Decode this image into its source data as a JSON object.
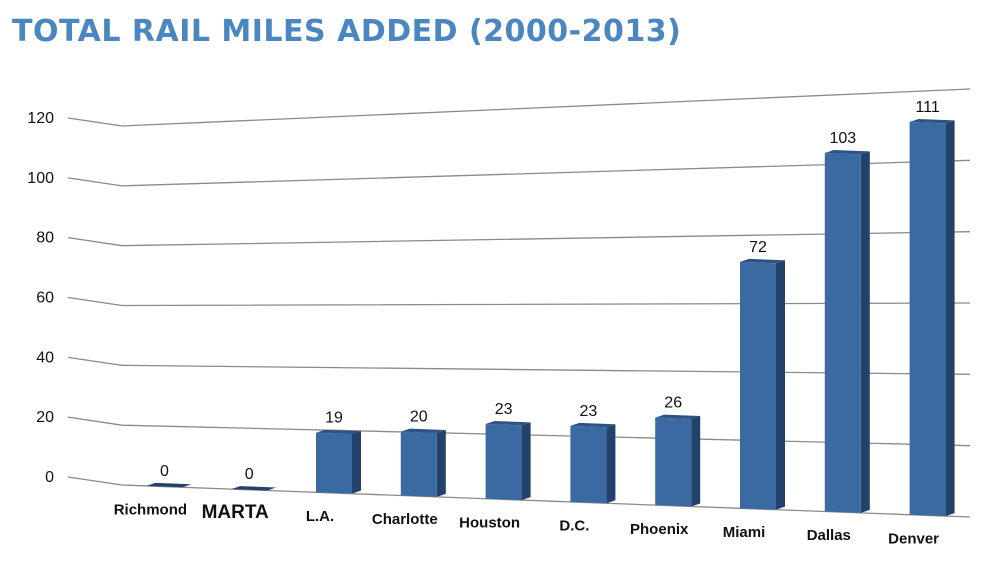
{
  "title": "TOTAL RAIL MILES ADDED (2000-2013)",
  "colors": {
    "title": "#4a86c0",
    "bar_front": "#3b6aa3",
    "bar_side": "#22426b",
    "bar_top": "#2c5383",
    "highlight_label": "#e8792b",
    "grid": "#8a8a8a"
  },
  "chart_data": {
    "type": "bar",
    "title": "TOTAL RAIL MILES ADDED (2000-2013)",
    "xlabel": "",
    "ylabel": "",
    "categories": [
      "Richmond",
      "MARTA",
      "L.A.",
      "Charlotte",
      "Houston",
      "D.C.",
      "Phoenix",
      "Miami",
      "Dallas",
      "Denver"
    ],
    "values": [
      0,
      0,
      19,
      20,
      23,
      23,
      26,
      72,
      103,
      111
    ],
    "data_labels": [
      "0",
      "0",
      "19",
      "20",
      "23",
      "23",
      "26",
      "72",
      "103",
      "111"
    ],
    "highlight_category": "MARTA",
    "ylim": [
      0,
      120
    ],
    "yticks": [
      0,
      20,
      40,
      60,
      80,
      100,
      120
    ],
    "grid": true,
    "legend": "none",
    "style": "3d-perspective"
  }
}
